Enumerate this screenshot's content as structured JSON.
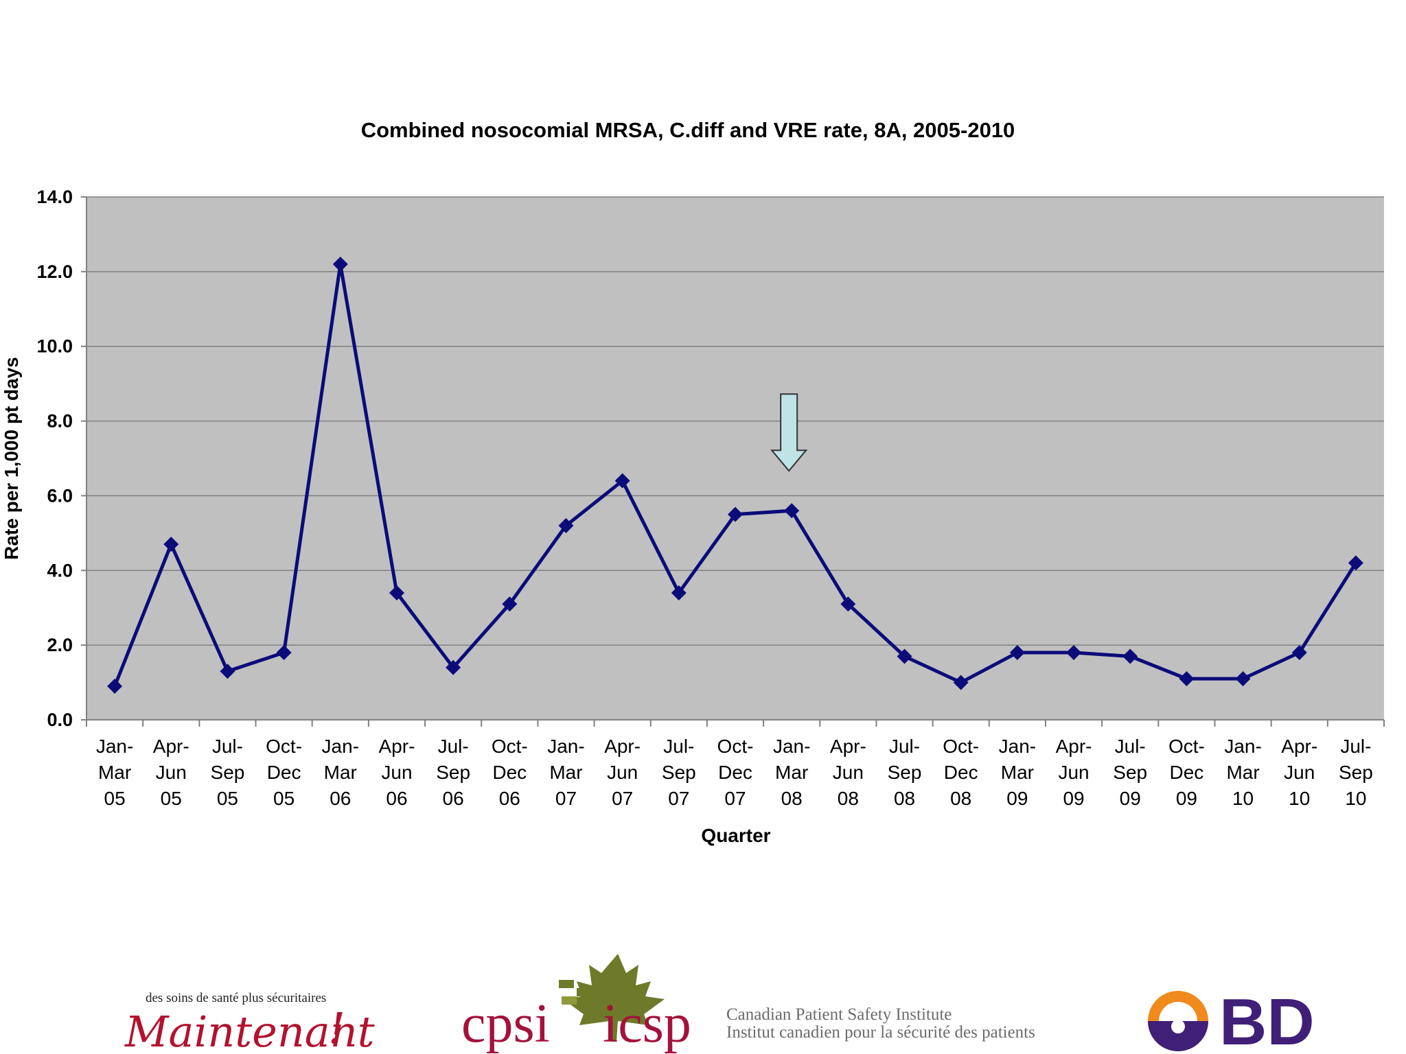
{
  "chart_data": {
    "type": "line",
    "title": "Combined nosocomial MRSA, C.diff and VRE rate, 8A, 2005-2010",
    "xlabel": "Quarter",
    "ylabel": "Rate per 1,000 pt days",
    "ylim": [
      0,
      14
    ],
    "yticks": [
      "0.0",
      "2.0",
      "4.0",
      "6.0",
      "8.0",
      "10.0",
      "12.0",
      "14.0"
    ],
    "grid": true,
    "legend": "none",
    "categories": [
      [
        "Jan-",
        "Mar",
        "05"
      ],
      [
        "Apr-",
        "Jun",
        "05"
      ],
      [
        "Jul-",
        "Sep",
        "05"
      ],
      [
        "Oct-",
        "Dec",
        "05"
      ],
      [
        "Jan-",
        "Mar",
        "06"
      ],
      [
        "Apr-",
        "Jun",
        "06"
      ],
      [
        "Jul-",
        "Sep",
        "06"
      ],
      [
        "Oct-",
        "Dec",
        "06"
      ],
      [
        "Jan-",
        "Mar",
        "07"
      ],
      [
        "Apr-",
        "Jun",
        "07"
      ],
      [
        "Jul-",
        "Sep",
        "07"
      ],
      [
        "Oct-",
        "Dec",
        "07"
      ],
      [
        "Jan-",
        "Mar",
        "08"
      ],
      [
        "Apr-",
        "Jun",
        "08"
      ],
      [
        "Jul-",
        "Sep",
        "08"
      ],
      [
        "Oct-",
        "Dec",
        "08"
      ],
      [
        "Jan-",
        "Mar",
        "09"
      ],
      [
        "Apr-",
        "Jun",
        "09"
      ],
      [
        "Jul-",
        "Sep",
        "09"
      ],
      [
        "Oct-",
        "Dec",
        "09"
      ],
      [
        "Jan-",
        "Mar",
        "10"
      ],
      [
        "Apr-",
        "Jun",
        "10"
      ],
      [
        "Jul-",
        "Sep",
        "10"
      ]
    ],
    "series": [
      {
        "values": [
          0.9,
          4.7,
          1.3,
          1.8,
          12.2,
          3.4,
          1.4,
          3.1,
          5.2,
          6.4,
          3.4,
          5.5,
          5.6,
          3.1,
          1.7,
          1.0,
          1.8,
          1.8,
          1.7,
          1.1,
          1.1,
          1.8,
          4.2
        ]
      }
    ],
    "annotation": {
      "type": "arrow-down",
      "category_index": 12
    },
    "colors": {
      "plot_bg": "#c0c0c0",
      "line": "#0b0b7a",
      "arrow_fill": "#bfe3e6",
      "gridline": "#808080"
    }
  },
  "logos": {
    "maintenant_small": "des soins de santé plus sécuritaires",
    "maintenant_script": "Maintenant",
    "maintenant_mark": "!",
    "cpsi_left": "cpsi",
    "cpsi_right": "icsp",
    "cpsi_en": "Canadian Patient Safety Institute",
    "cpsi_fr": "Institut canadien pour la sécurité des patients",
    "bd": "BD"
  }
}
